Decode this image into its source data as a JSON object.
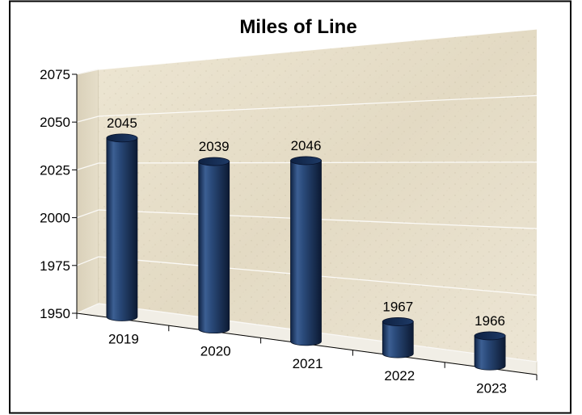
{
  "chart_data": {
    "type": "bar",
    "title": "Miles of Line",
    "categories": [
      "2019",
      "2020",
      "2021",
      "2022",
      "2023"
    ],
    "values": [
      2045,
      2039,
      2046,
      1967,
      1966
    ],
    "data_labels": [
      "2045",
      "2039",
      "2046",
      "1967",
      "1966"
    ],
    "ylim": [
      1950,
      2075
    ],
    "yticks": [
      "1950",
      "1975",
      "2000",
      "2025",
      "2050",
      "2075"
    ],
    "xlabel": "",
    "ylabel": "",
    "grid": true,
    "legend": "none",
    "style": "3d-cylinder",
    "colors": {
      "bar": "#1f3b66",
      "bar_highlight": "#5a7fb3",
      "wall": "#e8e0cc",
      "floor": "#f2efe6"
    }
  }
}
